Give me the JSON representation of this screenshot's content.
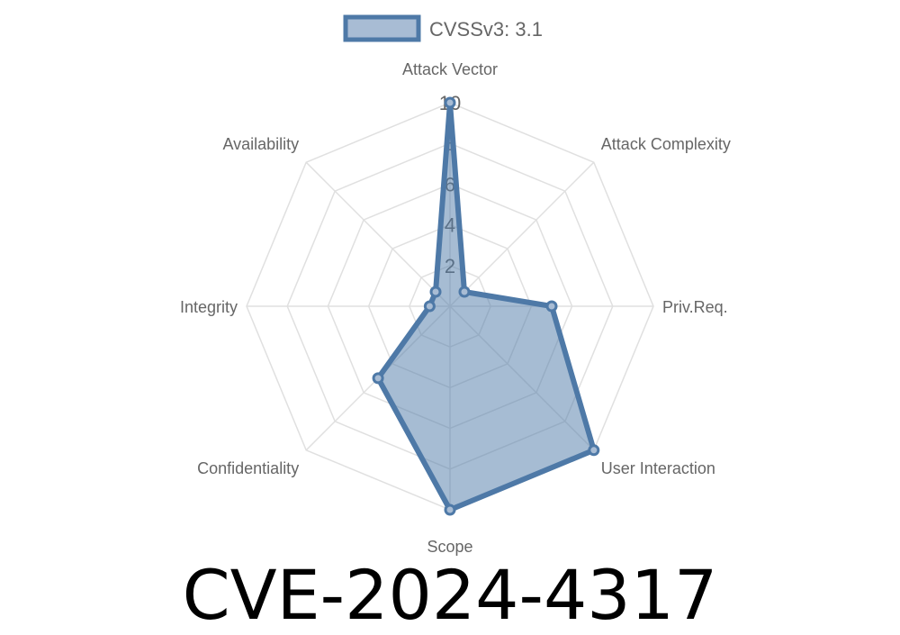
{
  "title": "CVE-2024-4317",
  "chart_data": {
    "type": "radar",
    "legend": {
      "label": "CVSSv3: 3.1",
      "position": "top"
    },
    "categories": [
      "Attack Vector",
      "Attack Complexity",
      "Priv.Req.",
      "User Interaction",
      "Scope",
      "Confidentiality",
      "Integrity",
      "Availability"
    ],
    "series": [
      {
        "name": "CVSSv3: 3.1",
        "values": [
          10,
          1,
          5,
          10,
          10,
          5,
          1,
          1
        ]
      }
    ],
    "rlim": [
      0,
      10
    ],
    "ticks": [
      "2",
      "4",
      "6",
      "8",
      "10"
    ],
    "tick_values": [
      2,
      4,
      6,
      8,
      10
    ],
    "grid": true,
    "colors": {
      "line": "#4e79a7",
      "fill": "#4e79a7",
      "grid": "#e0e0e0",
      "label": "#666666"
    }
  }
}
